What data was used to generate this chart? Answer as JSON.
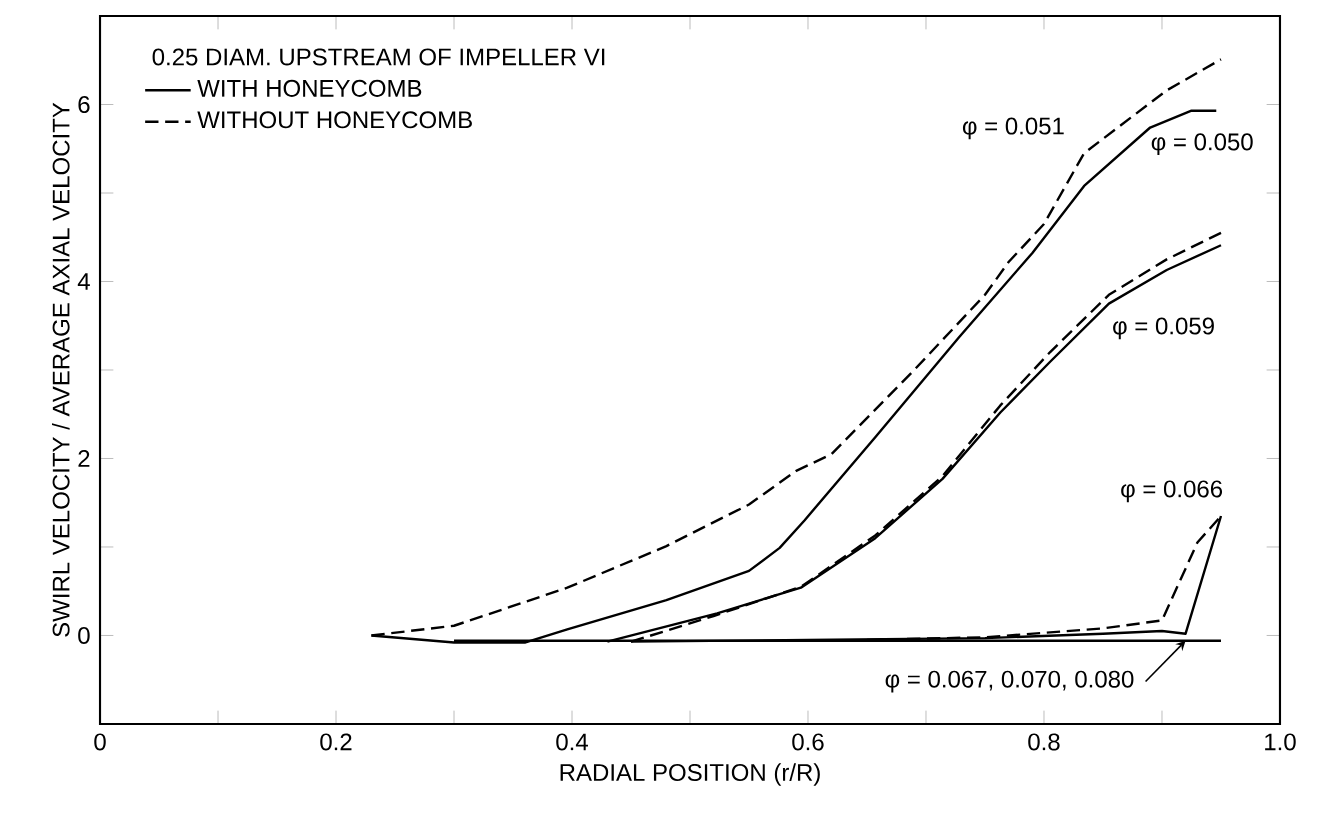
{
  "chart_data": {
    "type": "line",
    "xlabel": "RADIAL POSITION (r/R)",
    "ylabel": "SWIRL VELOCITY / AVERAGE AXIAL VELOCITY",
    "legend_title": "0.25 DIAM. UPSTREAM OF IMPELLER VI",
    "legend": "top left",
    "xlim": [
      0,
      1
    ],
    "ylim": [
      -1,
      7
    ],
    "xticks": [
      0,
      {
        "value": 0.1,
        "label": null
      },
      0.2,
      {
        "value": 0.3,
        "label": null
      },
      0.4,
      {
        "value": 0.5,
        "label": null
      },
      0.6,
      {
        "value": 0.7,
        "label": null
      },
      0.8,
      {
        "value": 0.9,
        "label": null
      },
      {
        "value": 1,
        "label": "1.0"
      }
    ],
    "yticks": [
      0,
      {
        "value": 1,
        "label": null
      },
      2,
      {
        "value": 3,
        "label": null
      },
      4,
      {
        "value": 5,
        "label": null
      },
      6
    ],
    "series": [
      {
        "name": "WITH HONEYCOMB",
        "color": "#000000",
        "line_style": "solid",
        "x": [
          0.23,
          0.3,
          0.36,
          0.396,
          0.48,
          0.55,
          0.576,
          0.597,
          0.657,
          0.728,
          0.79,
          0.834,
          0.89,
          0.925,
          0.946
        ],
        "values": [
          0,
          -0.08,
          -0.08,
          0.07,
          0.4,
          0.73,
          0.99,
          1.3,
          2.24,
          3.37,
          4.32,
          5.08,
          5.74,
          5.93,
          5.93
        ]
      },
      {
        "name": "WITHOUT HONEYCOMB",
        "color": "#000000",
        "line_style": "dashed",
        "x": [
          0.23,
          0.3,
          0.396,
          0.48,
          0.55,
          0.59,
          0.62,
          0.69,
          0.75,
          0.77,
          0.8,
          0.834,
          0.904,
          0.95
        ],
        "values": [
          0,
          0.11,
          0.54,
          1.01,
          1.48,
          1.86,
          2.05,
          3.0,
          3.85,
          4.22,
          4.65,
          5.45,
          6.16,
          6.51
        ]
      },
      {
        "color": "#000000",
        "line_style": "solid",
        "x": [
          0.43,
          0.523,
          0.594,
          0.657,
          0.714,
          0.763,
          0.805,
          0.855,
          0.904,
          0.95
        ],
        "values": [
          -0.07,
          0.25,
          0.54,
          1.1,
          1.77,
          2.52,
          3.09,
          3.75,
          4.13,
          4.41
        ]
      },
      {
        "color": "#000000",
        "line_style": "dashed",
        "x": [
          0.45,
          0.52,
          0.594,
          0.657,
          0.714,
          0.763,
          0.805,
          0.855,
          0.904,
          0.95
        ],
        "values": [
          -0.07,
          0.22,
          0.55,
          1.13,
          1.8,
          2.6,
          3.2,
          3.85,
          4.25,
          4.55
        ]
      },
      {
        "color": "#000000",
        "line_style": "solid",
        "x": [
          0.45,
          0.6,
          0.75,
          0.85,
          0.9,
          0.92,
          0.95
        ],
        "values": [
          -0.07,
          -0.05,
          -0.03,
          0.02,
          0.05,
          0.02,
          1.35
        ]
      },
      {
        "color": "#000000",
        "line_style": "dashed",
        "x": [
          0.65,
          0.75,
          0.85,
          0.9,
          0.93,
          0.95
        ],
        "values": [
          -0.05,
          -0.02,
          0.08,
          0.17,
          1.05,
          1.35
        ]
      },
      {
        "color": "#000000",
        "line_style": "solid",
        "x": [
          0.3,
          0.5,
          0.7,
          0.95
        ],
        "values": [
          -0.06,
          -0.06,
          -0.06,
          -0.06
        ]
      }
    ],
    "annotations": [
      {
        "text": "φ = 0.051",
        "x": 0.834,
        "y": 5.45
      },
      {
        "text": "φ = 0.050",
        "x": 0.89,
        "y": 5.74
      },
      {
        "text": "φ = 0.059",
        "x": 0.855,
        "y": 3.75
      },
      {
        "text": "φ = 0.066",
        "x": 0.95,
        "y": 1.35
      },
      {
        "text": "φ = 0.067, 0.070, 0.080",
        "x": 0.92,
        "y": -0.06
      }
    ]
  }
}
